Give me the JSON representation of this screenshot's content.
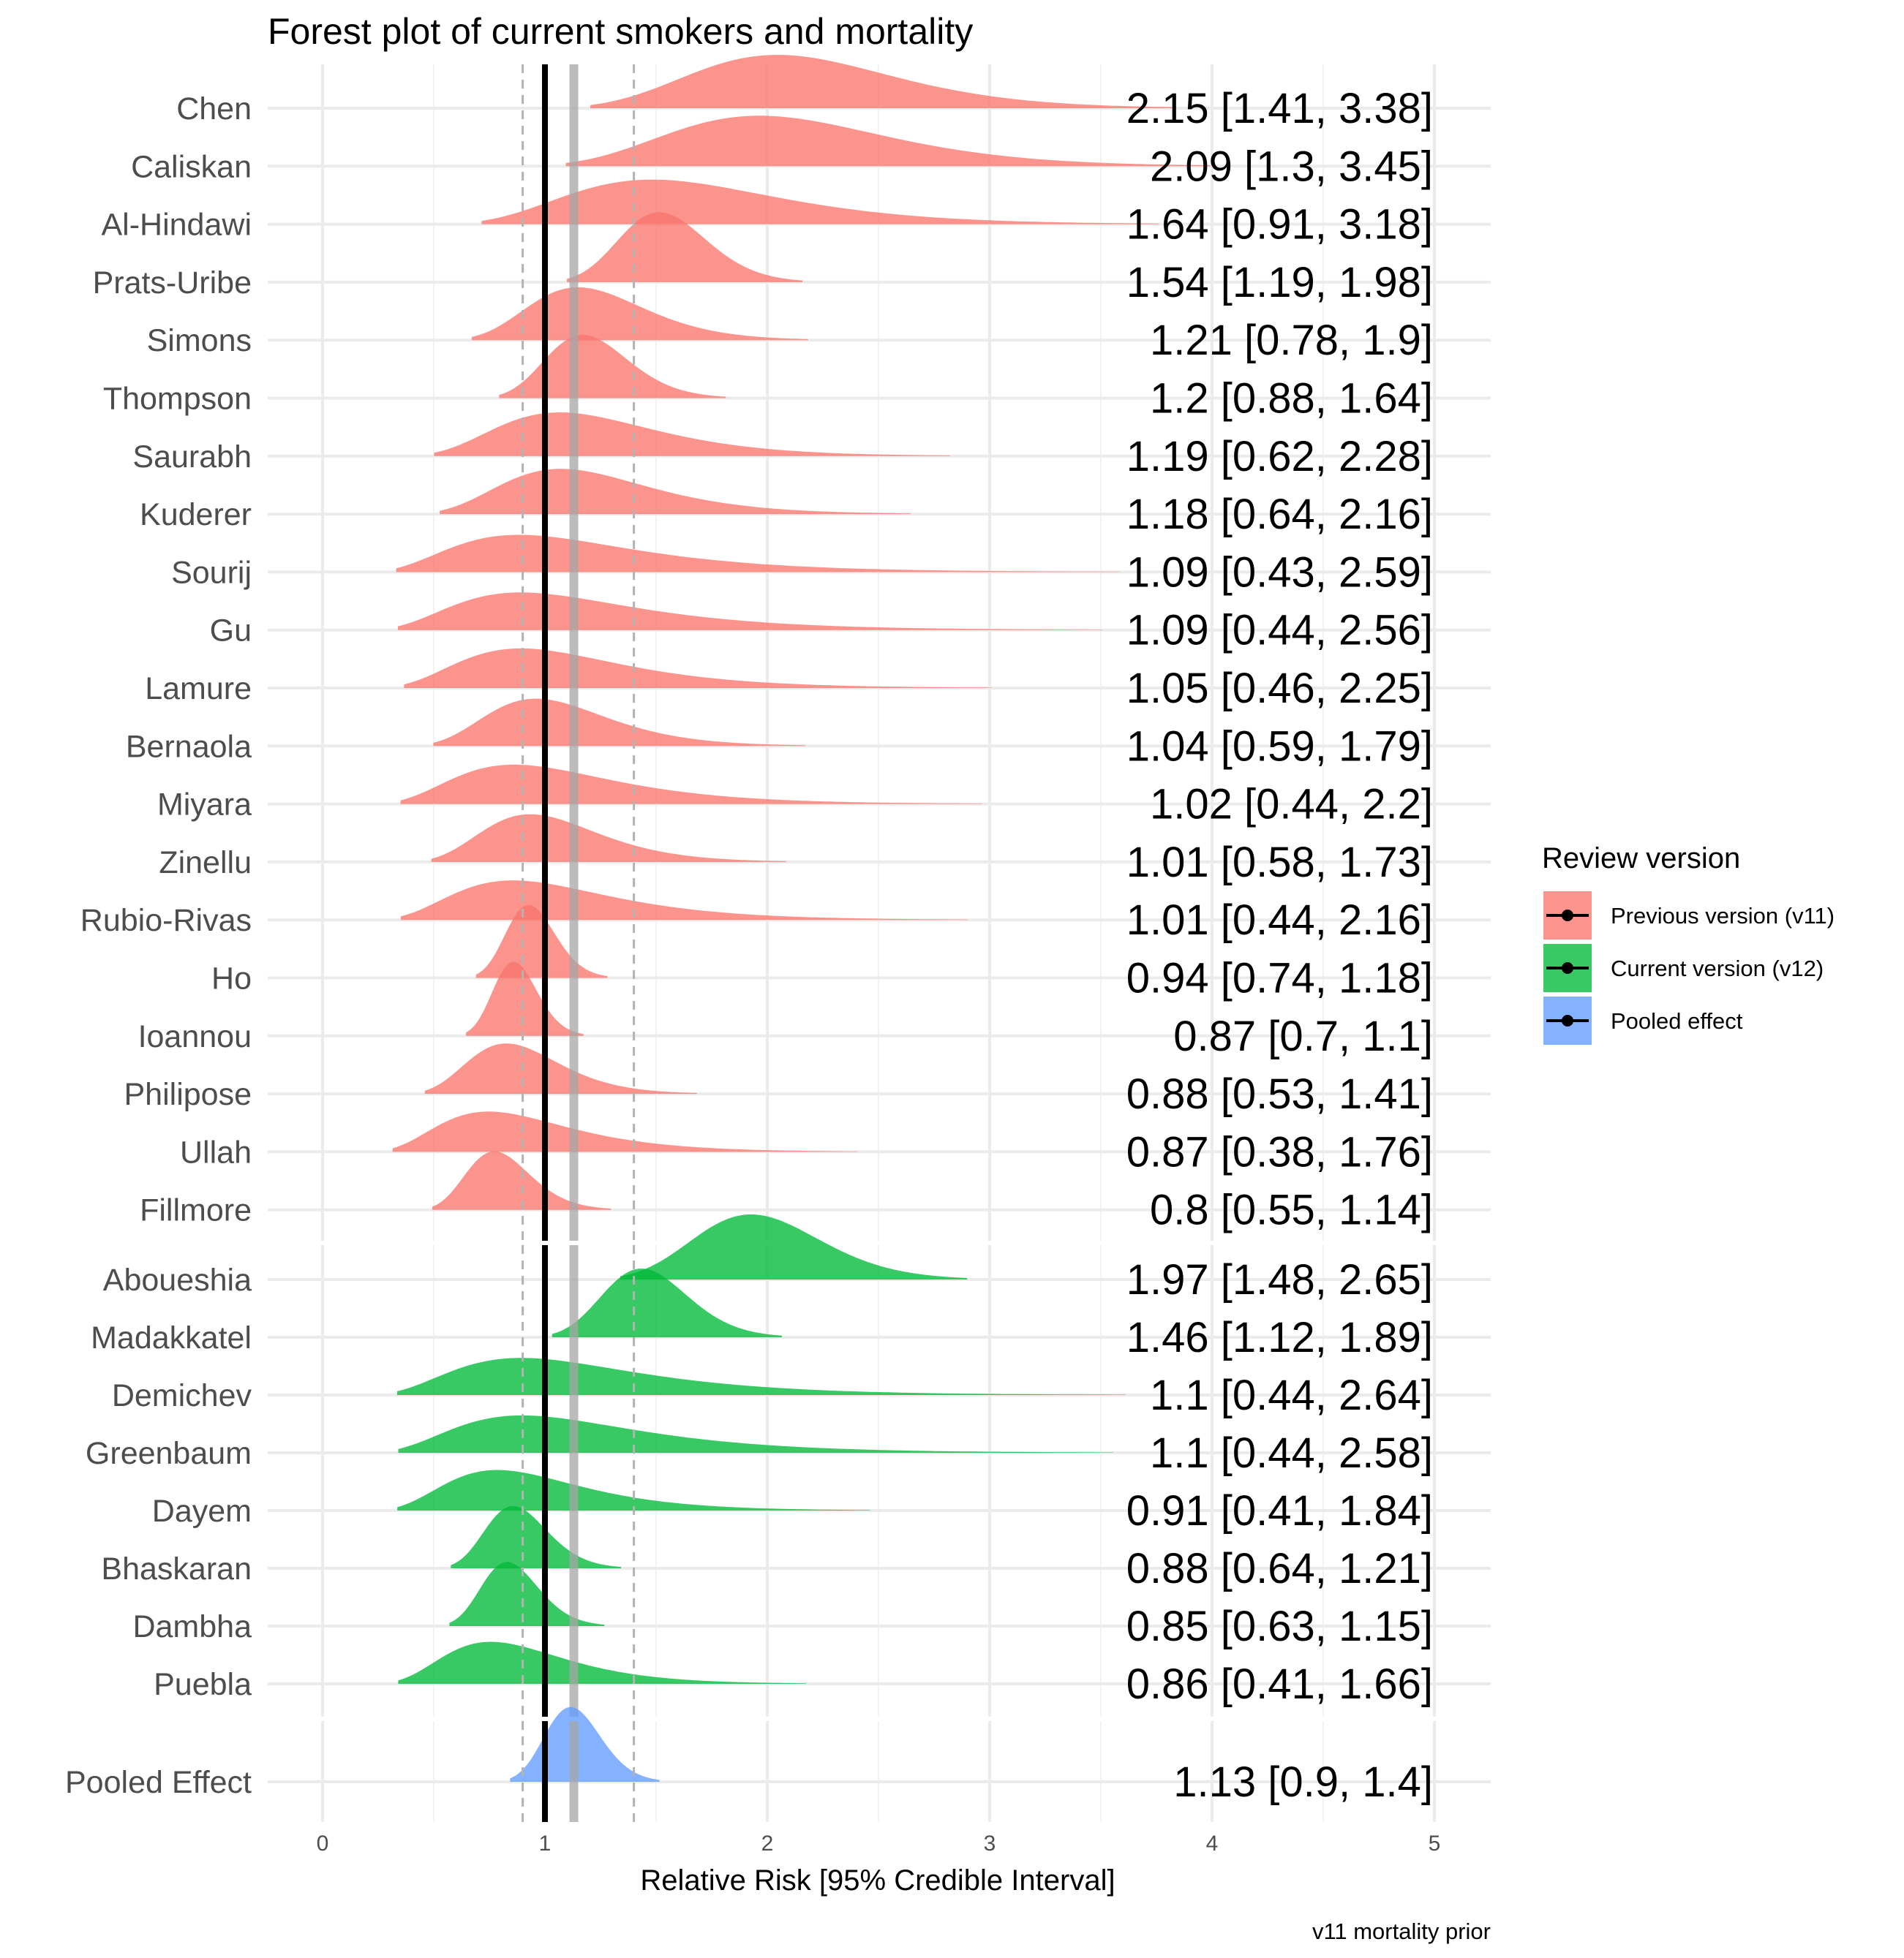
{
  "chart_data": {
    "type": "ridgeline-forest",
    "title": "Forest plot of current smokers and mortality",
    "xlabel": "Relative Risk [95% Credible Interval]",
    "caption": "v11 mortality prior",
    "xlim": [
      0,
      5
    ],
    "xticks": [
      0,
      1,
      2,
      3,
      4,
      5
    ],
    "reference_line": 1,
    "pooled_line": 1.13,
    "pooled_interval_lines": [
      0.9,
      1.4
    ],
    "legend": {
      "title": "Review version",
      "position": "right",
      "items": [
        {
          "label": "Previous version (v11)",
          "color": "#F8766D"
        },
        {
          "label": "Current version (v12)",
          "color": "#00BA38"
        },
        {
          "label": "Pooled effect",
          "color": "#619CFF"
        }
      ]
    },
    "groups": [
      {
        "name": "Previous version (v11)",
        "color": "#F8766D",
        "studies": [
          {
            "name": "Chen",
            "estimate": 2.15,
            "lower": 1.41,
            "upper": 3.38,
            "text": "2.15 [1.41, 3.38]"
          },
          {
            "name": "Caliskan",
            "estimate": 2.09,
            "lower": 1.3,
            "upper": 3.45,
            "text": "2.09 [1.3, 3.45]"
          },
          {
            "name": "Al-Hindawi",
            "estimate": 1.64,
            "lower": 0.91,
            "upper": 3.18,
            "text": "1.64 [0.91, 3.18]"
          },
          {
            "name": "Prats-Uribe",
            "estimate": 1.54,
            "lower": 1.19,
            "upper": 1.98,
            "text": "1.54 [1.19, 1.98]"
          },
          {
            "name": "Simons",
            "estimate": 1.21,
            "lower": 0.78,
            "upper": 1.9,
            "text": "1.21 [0.78, 1.9]"
          },
          {
            "name": "Thompson",
            "estimate": 1.2,
            "lower": 0.88,
            "upper": 1.64,
            "text": "1.2 [0.88, 1.64]"
          },
          {
            "name": "Saurabh",
            "estimate": 1.19,
            "lower": 0.62,
            "upper": 2.28,
            "text": "1.19 [0.62, 2.28]"
          },
          {
            "name": "Kuderer",
            "estimate": 1.18,
            "lower": 0.64,
            "upper": 2.16,
            "text": "1.18 [0.64, 2.16]"
          },
          {
            "name": "Sourij",
            "estimate": 1.09,
            "lower": 0.43,
            "upper": 2.59,
            "text": "1.09 [0.43, 2.59]"
          },
          {
            "name": "Gu",
            "estimate": 1.09,
            "lower": 0.44,
            "upper": 2.56,
            "text": "1.09 [0.44, 2.56]"
          },
          {
            "name": "Lamure",
            "estimate": 1.05,
            "lower": 0.46,
            "upper": 2.25,
            "text": "1.05 [0.46, 2.25]"
          },
          {
            "name": "Bernaola",
            "estimate": 1.04,
            "lower": 0.59,
            "upper": 1.79,
            "text": "1.04 [0.59, 1.79]"
          },
          {
            "name": "Miyara",
            "estimate": 1.02,
            "lower": 0.44,
            "upper": 2.2,
            "text": "1.02 [0.44, 2.2]"
          },
          {
            "name": "Zinellu",
            "estimate": 1.01,
            "lower": 0.58,
            "upper": 1.73,
            "text": "1.01 [0.58, 1.73]"
          },
          {
            "name": "Rubio-Rivas",
            "estimate": 1.01,
            "lower": 0.44,
            "upper": 2.16,
            "text": "1.01 [0.44, 2.16]"
          },
          {
            "name": "Ho",
            "estimate": 0.94,
            "lower": 0.74,
            "upper": 1.18,
            "text": "0.94 [0.74, 1.18]"
          },
          {
            "name": "Ioannou",
            "estimate": 0.87,
            "lower": 0.7,
            "upper": 1.1,
            "text": "0.87 [0.7, 1.1]"
          },
          {
            "name": "Philipose",
            "estimate": 0.88,
            "lower": 0.53,
            "upper": 1.41,
            "text": "0.88 [0.53, 1.41]"
          },
          {
            "name": "Ullah",
            "estimate": 0.87,
            "lower": 0.38,
            "upper": 1.76,
            "text": "0.87 [0.38, 1.76]"
          },
          {
            "name": "Fillmore",
            "estimate": 0.8,
            "lower": 0.55,
            "upper": 1.14,
            "text": "0.8 [0.55, 1.14]"
          }
        ]
      },
      {
        "name": "Current version (v12)",
        "color": "#00BA38",
        "studies": [
          {
            "name": "Aboueshia",
            "estimate": 1.97,
            "lower": 1.48,
            "upper": 2.65,
            "text": "1.97 [1.48, 2.65]"
          },
          {
            "name": "Madakkatel",
            "estimate": 1.46,
            "lower": 1.12,
            "upper": 1.89,
            "text": "1.46 [1.12, 1.89]"
          },
          {
            "name": "Demichev",
            "estimate": 1.1,
            "lower": 0.44,
            "upper": 2.64,
            "text": "1.1 [0.44, 2.64]"
          },
          {
            "name": "Greenbaum",
            "estimate": 1.1,
            "lower": 0.44,
            "upper": 2.58,
            "text": "1.1 [0.44, 2.58]"
          },
          {
            "name": "Dayem",
            "estimate": 0.91,
            "lower": 0.41,
            "upper": 1.84,
            "text": "0.91 [0.41, 1.84]"
          },
          {
            "name": "Bhaskaran",
            "estimate": 0.88,
            "lower": 0.64,
            "upper": 1.21,
            "text": "0.88 [0.64, 1.21]"
          },
          {
            "name": "Dambha",
            "estimate": 0.85,
            "lower": 0.63,
            "upper": 1.15,
            "text": "0.85 [0.63, 1.15]"
          },
          {
            "name": "Puebla",
            "estimate": 0.86,
            "lower": 0.41,
            "upper": 1.66,
            "text": "0.86 [0.41, 1.66]"
          }
        ]
      },
      {
        "name": "Pooled effect",
        "color": "#619CFF",
        "studies": [
          {
            "name": "Pooled Effect",
            "estimate": 1.13,
            "lower": 0.9,
            "upper": 1.4,
            "text": "1.13 [0.9, 1.4]"
          }
        ]
      }
    ]
  }
}
